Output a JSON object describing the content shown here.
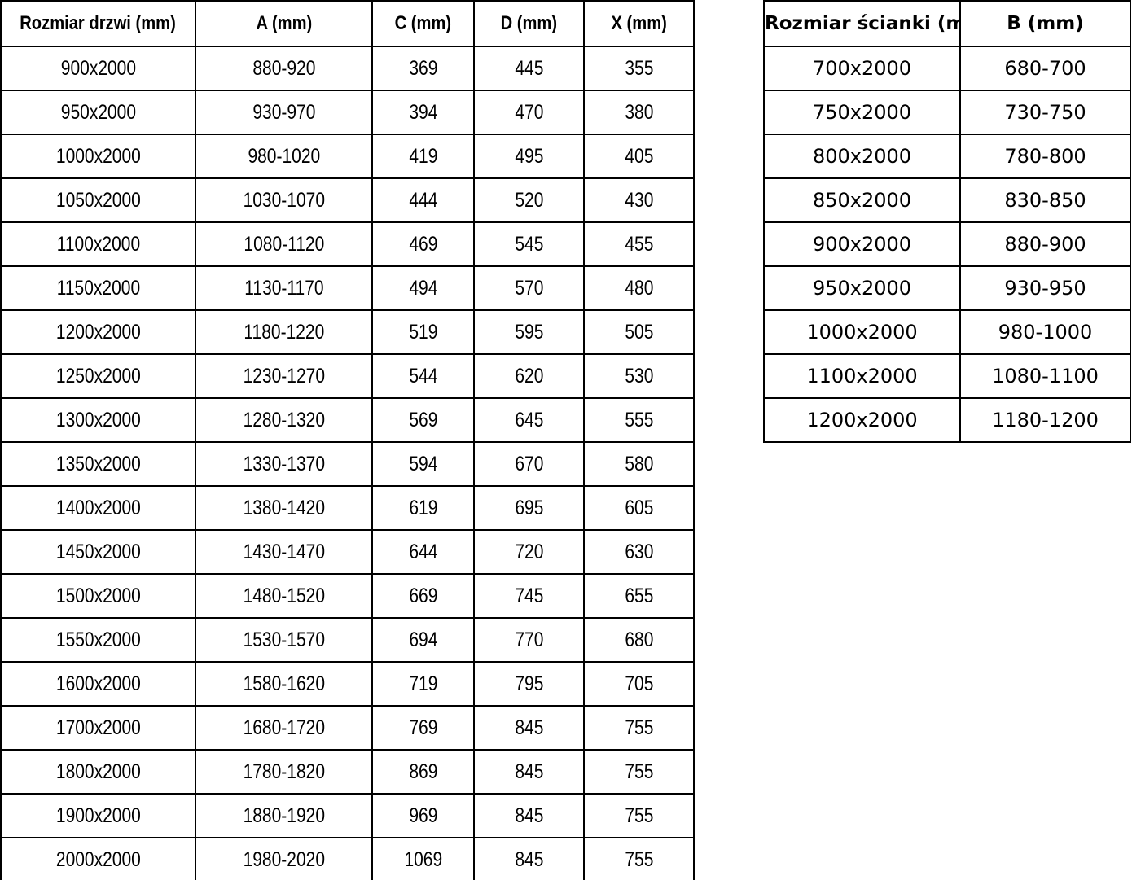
{
  "page": {
    "background_color": "#ffffff",
    "text_color": "#000000",
    "grid_border_color": "#000000"
  },
  "chart_data": [
    {
      "type": "table",
      "name": "door-dimensions",
      "columns": [
        "Rozmiar drzwi (mm)",
        "A (mm)",
        "C (mm)",
        "D (mm)",
        "X (mm)"
      ],
      "rows": [
        [
          "900x2000",
          "880-920",
          "369",
          "445",
          "355"
        ],
        [
          "950x2000",
          "930-970",
          "394",
          "470",
          "380"
        ],
        [
          "1000x2000",
          "980-1020",
          "419",
          "495",
          "405"
        ],
        [
          "1050x2000",
          "1030-1070",
          "444",
          "520",
          "430"
        ],
        [
          "1100x2000",
          "1080-1120",
          "469",
          "545",
          "455"
        ],
        [
          "1150x2000",
          "1130-1170",
          "494",
          "570",
          "480"
        ],
        [
          "1200x2000",
          "1180-1220",
          "519",
          "595",
          "505"
        ],
        [
          "1250x2000",
          "1230-1270",
          "544",
          "620",
          "530"
        ],
        [
          "1300x2000",
          "1280-1320",
          "569",
          "645",
          "555"
        ],
        [
          "1350x2000",
          "1330-1370",
          "594",
          "670",
          "580"
        ],
        [
          "1400x2000",
          "1380-1420",
          "619",
          "695",
          "605"
        ],
        [
          "1450x2000",
          "1430-1470",
          "644",
          "720",
          "630"
        ],
        [
          "1500x2000",
          "1480-1520",
          "669",
          "745",
          "655"
        ],
        [
          "1550x2000",
          "1530-1570",
          "694",
          "770",
          "680"
        ],
        [
          "1600x2000",
          "1580-1620",
          "719",
          "795",
          "705"
        ],
        [
          "1700x2000",
          "1680-1720",
          "769",
          "845",
          "755"
        ],
        [
          "1800x2000",
          "1780-1820",
          "869",
          "845",
          "755"
        ],
        [
          "1900x2000",
          "1880-1920",
          "969",
          "845",
          "755"
        ],
        [
          "2000x2000",
          "1980-2020",
          "1069",
          "845",
          "755"
        ]
      ]
    },
    {
      "type": "table",
      "name": "wall-dimensions",
      "columns": [
        "Rozmiar ścianki (mm)",
        "B (mm)"
      ],
      "rows": [
        [
          "700x2000",
          "680-700"
        ],
        [
          "750x2000",
          "730-750"
        ],
        [
          "800x2000",
          "780-800"
        ],
        [
          "850x2000",
          "830-850"
        ],
        [
          "900x2000",
          "880-900"
        ],
        [
          "950x2000",
          "930-950"
        ],
        [
          "1000x2000",
          "980-1000"
        ],
        [
          "1100x2000",
          "1080-1100"
        ],
        [
          "1200x2000",
          "1180-1200"
        ]
      ]
    }
  ]
}
